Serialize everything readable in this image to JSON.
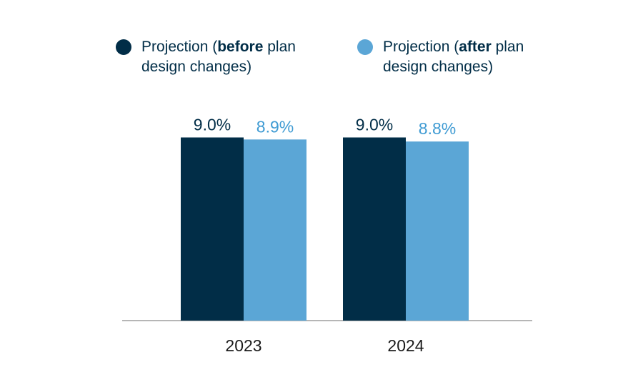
{
  "chart_data": {
    "type": "bar",
    "categories": [
      "2023",
      "2024"
    ],
    "series": [
      {
        "name": "Projection (before plan design changes)",
        "legend_parts": [
          "Projection (",
          "before",
          " plan design changes)"
        ],
        "values": [
          9.0,
          9.0
        ],
        "labels": [
          "9.0%",
          "9.0%"
        ],
        "color": "#012d47"
      },
      {
        "name": "Projection (after plan design changes)",
        "legend_parts": [
          "Projection (",
          "after",
          " plan design changes)"
        ],
        "values": [
          8.9,
          8.8
        ],
        "labels": [
          "8.9%",
          "8.8%"
        ],
        "color": "#5ba6d6"
      }
    ],
    "title": "",
    "xlabel": "",
    "ylabel": "",
    "ylim": [
      0,
      10
    ],
    "grid": false,
    "legend_position": "top"
  }
}
